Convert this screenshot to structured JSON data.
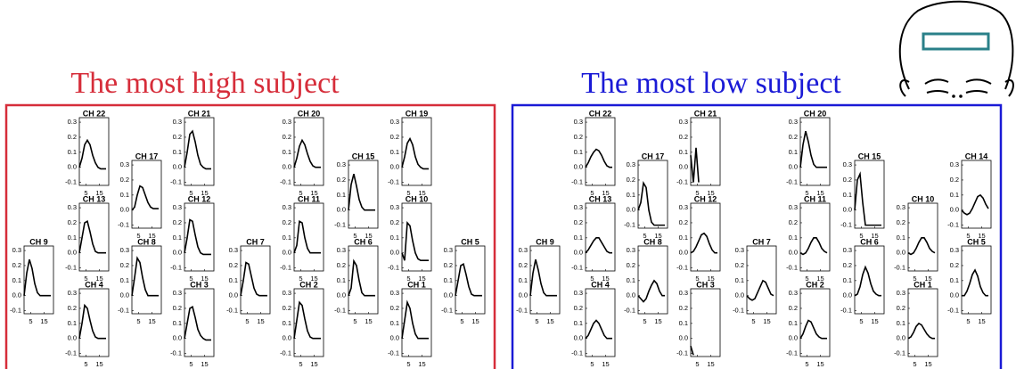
{
  "x": [
    0,
    2,
    4,
    6,
    8,
    10,
    12,
    14,
    16,
    18,
    20
  ],
  "xlim": [
    0,
    22
  ],
  "ylim": [
    -0.12,
    0.33
  ],
  "xticks": [
    5,
    15
  ],
  "yticks": [
    {
      "value": 0.3,
      "label": "0.3"
    },
    {
      "value": 0.2,
      "label": "0.2"
    },
    {
      "value": 0.1,
      "label": "0.1"
    },
    {
      "value": 0,
      "label": "0.0"
    },
    -0.1
  ],
  "panels": [
    {
      "title": "The most high subject",
      "color": "#d62d3a",
      "line_color": "#000000",
      "charts": [
        {
          "title": "CH 22",
          "values": [
            0,
            0.06,
            0.15,
            0.18,
            0.15,
            0.08,
            0.03,
            0,
            -0.01,
            -0.01,
            -0.01
          ]
        },
        {
          "title": "CH 21",
          "values": [
            0,
            0.1,
            0.22,
            0.24,
            0.17,
            0.08,
            0.02,
            0,
            -0.01,
            -0.01,
            -0.01
          ]
        },
        {
          "title": "CH 20",
          "values": [
            0,
            0.06,
            0.14,
            0.18,
            0.15,
            0.09,
            0.04,
            0.01,
            0,
            0,
            0
          ]
        },
        {
          "title": "CH 19",
          "values": [
            0,
            0.07,
            0.16,
            0.19,
            0.15,
            0.07,
            0.02,
            0,
            -0.01,
            -0.01,
            -0.01
          ]
        },
        {
          "title": "CH 17",
          "values": [
            0,
            0.02,
            0.1,
            0.16,
            0.15,
            0.1,
            0.05,
            0.02,
            0.01,
            0.01,
            0.01
          ]
        },
        {
          "title": "CH 15",
          "values": [
            0,
            0.17,
            0.24,
            0.16,
            0.07,
            0.02,
            0,
            0,
            0,
            0,
            0
          ]
        },
        {
          "title": "CH 13",
          "values": [
            0,
            0.1,
            0.2,
            0.21,
            0.14,
            0.06,
            0.01,
            0,
            0,
            0,
            0
          ]
        },
        {
          "title": "CH 12",
          "values": [
            0,
            0.1,
            0.22,
            0.21,
            0.12,
            0.04,
            0,
            -0.01,
            -0.01,
            -0.01,
            -0.01
          ]
        },
        {
          "title": "CH 11",
          "values": [
            0,
            0.05,
            0.21,
            0.2,
            0.1,
            0.03,
            0,
            0,
            0,
            0,
            0
          ]
        },
        {
          "title": "CH 10",
          "values": [
            0,
            -0.05,
            0.2,
            0.18,
            0.08,
            0,
            -0.04,
            -0.05,
            -0.05,
            -0.05,
            -0.05
          ]
        },
        {
          "title": "CH 9",
          "values": [
            0,
            0.15,
            0.24,
            0.18,
            0.08,
            0.02,
            0,
            0,
            0,
            0,
            0
          ]
        },
        {
          "title": "CH 8",
          "values": [
            0,
            0.12,
            0.25,
            0.22,
            0.12,
            0.04,
            0,
            0,
            0,
            0,
            0
          ]
        },
        {
          "title": "CH 7",
          "values": [
            0,
            0.1,
            0.22,
            0.21,
            0.13,
            0.05,
            0.01,
            0,
            0,
            0,
            0
          ]
        },
        {
          "title": "CH 6",
          "values": [
            0,
            0.05,
            0.23,
            0.2,
            0.1,
            0.02,
            0,
            0,
            0,
            0,
            0
          ]
        },
        {
          "title": "CH 5",
          "values": [
            0,
            0.1,
            0.2,
            0.21,
            0.14,
            0.06,
            0.01,
            0,
            0,
            0,
            0
          ]
        },
        {
          "title": "CH 4",
          "values": [
            0,
            0.1,
            0.22,
            0.2,
            0.12,
            0.05,
            0.01,
            0,
            0,
            0,
            0
          ]
        },
        {
          "title": "CH 3",
          "values": [
            0,
            0.1,
            0.2,
            0.21,
            0.14,
            0.06,
            0.02,
            0,
            -0.01,
            -0.01,
            -0.01
          ]
        },
        {
          "title": "CH 2",
          "values": [
            0,
            0.12,
            0.24,
            0.22,
            0.13,
            0.05,
            0.01,
            0,
            0,
            0,
            0
          ]
        },
        {
          "title": "CH 1",
          "values": [
            0,
            0.12,
            0.24,
            0.2,
            0.1,
            0.03,
            0,
            0,
            0,
            0,
            0
          ]
        }
      ]
    },
    {
      "title": "The most low subject",
      "color": "#1a1ad6",
      "line_color": "#000000",
      "charts": [
        {
          "title": "CH 22",
          "values": [
            0,
            0.03,
            0.07,
            0.1,
            0.12,
            0.11,
            0.08,
            0.04,
            0.01,
            0,
            0
          ]
        },
        {
          "title": "CH 21",
          "values": [
            0.08,
            -0.1,
            0.13,
            -0.1,
            null,
            null,
            null,
            null,
            null,
            null,
            null
          ]
        },
        {
          "title": "CH 20",
          "values": [
            0,
            0.15,
            0.24,
            0.17,
            0.08,
            0.02,
            0,
            0,
            0,
            0,
            0
          ]
        },
        {
          "title": "CH 17",
          "values": [
            0,
            0.05,
            0.18,
            0.15,
            0,
            -0.08,
            -0.1,
            -0.1,
            -0.1,
            -0.1,
            -0.1
          ]
        },
        {
          "title": "CH 15",
          "values": [
            0,
            0.2,
            0.24,
            0.05,
            -0.1,
            -0.1,
            -0.1,
            -0.1,
            -0.1,
            -0.1,
            -0.1
          ]
        },
        {
          "title": "CH 14",
          "values": [
            0,
            -0.02,
            -0.03,
            -0.02,
            0.01,
            0.05,
            0.09,
            0.1,
            0.08,
            0.04,
            0.01
          ]
        },
        {
          "title": "CH 13",
          "values": [
            0,
            0.02,
            0.05,
            0.08,
            0.1,
            0.1,
            0.07,
            0.04,
            0.01,
            0,
            0
          ]
        },
        {
          "title": "CH 12",
          "values": [
            0,
            0.01,
            0.04,
            0.08,
            0.12,
            0.13,
            0.11,
            0.06,
            0.02,
            0,
            0
          ]
        },
        {
          "title": "CH 11",
          "values": [
            0,
            -0.01,
            0,
            0.03,
            0.07,
            0.1,
            0.1,
            0.07,
            0.03,
            0.01,
            0
          ]
        },
        {
          "title": "CH 10",
          "values": [
            0,
            -0.01,
            0,
            0.03,
            0.07,
            0.1,
            0.1,
            0.07,
            0.03,
            0.01,
            0
          ]
        },
        {
          "title": "CH 9",
          "values": [
            0,
            0.15,
            0.24,
            0.17,
            0.08,
            0.02,
            0,
            0,
            0,
            0,
            0
          ]
        },
        {
          "title": "CH 8",
          "values": [
            0,
            -0.02,
            -0.04,
            -0.02,
            0.03,
            0.07,
            0.1,
            0.08,
            0.03,
            0,
            0
          ]
        },
        {
          "title": "CH 7",
          "values": [
            0,
            -0.02,
            -0.03,
            -0.02,
            0.02,
            0.06,
            0.1,
            0.09,
            0.05,
            0.01,
            0
          ]
        },
        {
          "title": "CH 6",
          "values": [
            0,
            0.01,
            0.06,
            0.14,
            0.19,
            0.15,
            0.08,
            0.03,
            0.01,
            0,
            0
          ]
        },
        {
          "title": "CH 5",
          "values": [
            0,
            0,
            0.03,
            0.08,
            0.14,
            0.17,
            0.13,
            0.06,
            0.02,
            0,
            0
          ]
        },
        {
          "title": "CH 4",
          "values": [
            0,
            0.02,
            0.06,
            0.1,
            0.12,
            0.1,
            0.06,
            0.02,
            0,
            0,
            0
          ]
        },
        {
          "title": "CH 3",
          "values": [
            -0.05,
            -0.11,
            null,
            null,
            null,
            null,
            null,
            null,
            null,
            null,
            null
          ]
        },
        {
          "title": "CH 2",
          "values": [
            0,
            0.03,
            0.08,
            0.12,
            0.11,
            0.07,
            0.03,
            0.01,
            0,
            0,
            0
          ]
        },
        {
          "title": "CH 1",
          "values": [
            0,
            0.01,
            0.04,
            0.08,
            0.1,
            0.09,
            0.06,
            0.03,
            0.01,
            0,
            0
          ]
        }
      ]
    }
  ]
}
